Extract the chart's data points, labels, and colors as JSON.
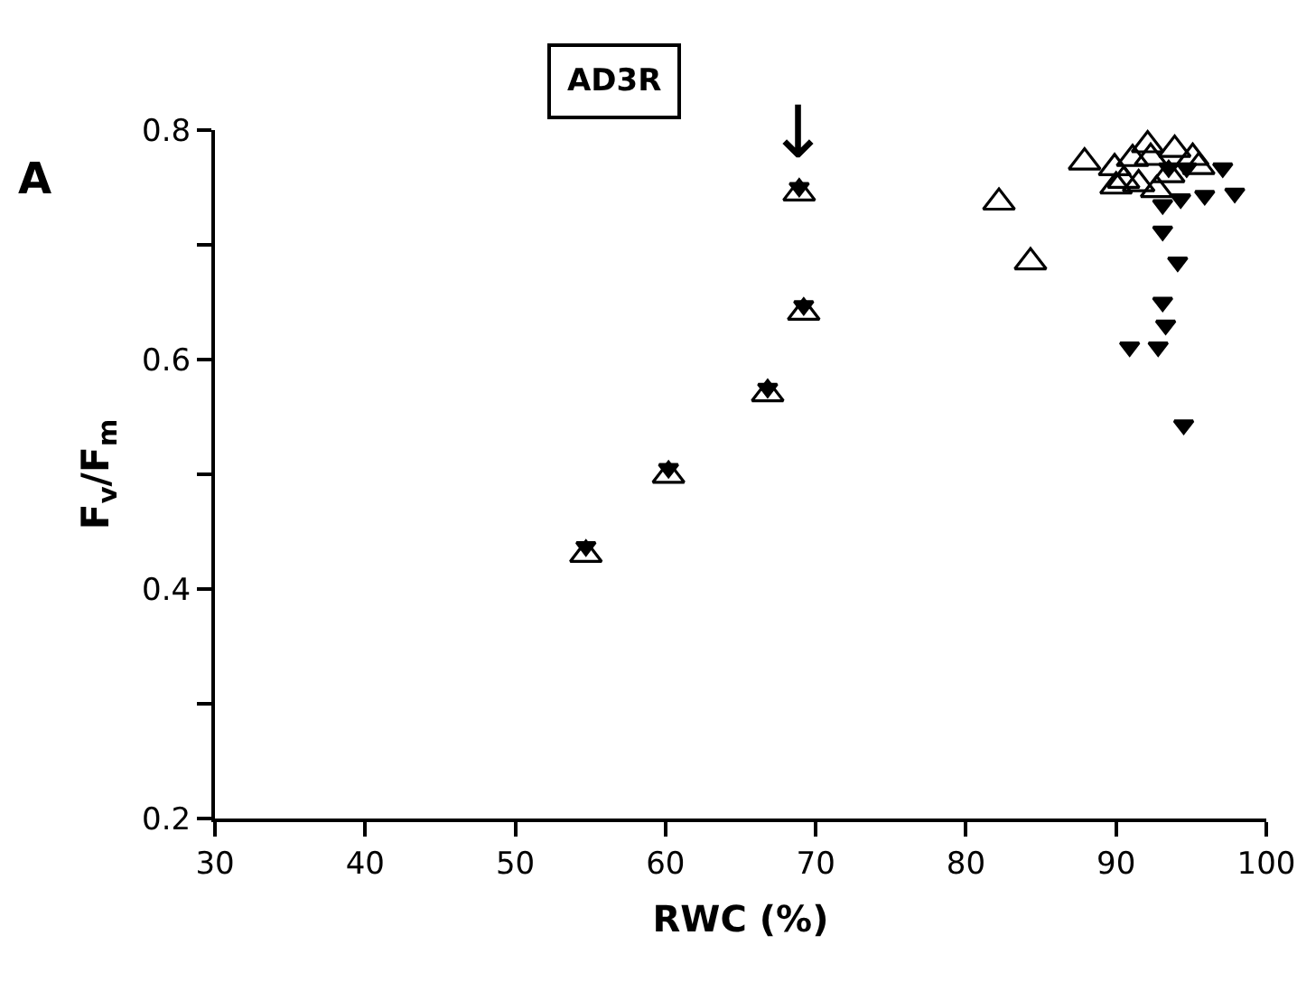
{
  "chart_data": {
    "type": "scatter",
    "title": "AD3R",
    "xlabel": "RWC (%)",
    "ylabel": "F$_{v}$/F$_{m}$",
    "xlim": [
      30,
      100
    ],
    "xticks": [
      30,
      40,
      50,
      60,
      70,
      80,
      90,
      100
    ],
    "ylim": [
      0.2,
      0.8
    ],
    "yticks": [
      0.2,
      {
        "value": 0.3,
        "label": null
      },
      0.4,
      {
        "value": 0.5,
        "label": null
      },
      0.6,
      {
        "value": 0.7,
        "label": null
      },
      0.8
    ],
    "annotations": [
      "A",
      {
        "text": "↓",
        "x": 68.9,
        "y": 0.745
      }
    ],
    "series": [
      {
        "color": "#000000",
        "marker": "triangle-open",
        "x": [
          54.7,
          60.2,
          66.8,
          69.2,
          68.9,
          82.2,
          84.3,
          87.9,
          89.9,
          90.5,
          91.1,
          92.1,
          92.3,
          90.0,
          91.5,
          93.9,
          93.5,
          95.1,
          95.5,
          92.7
        ],
        "values": [
          0.43,
          0.499,
          0.57,
          0.641,
          0.745,
          0.737,
          0.685,
          0.772,
          0.767,
          0.756,
          0.775,
          0.787,
          0.776,
          0.751,
          0.753,
          0.783,
          0.761,
          0.776,
          0.768,
          0.748
        ]
      },
      {
        "color": "#000000",
        "marker": "triangle-down",
        "x": [
          54.7,
          60.2,
          66.8,
          69.2,
          68.9,
          97.1,
          97.9,
          95.9,
          94.3,
          93.1,
          93.1,
          94.1,
          93.1,
          93.3,
          90.9,
          92.8,
          94.5,
          93.5,
          94.7
        ],
        "values": [
          0.437,
          0.505,
          0.575,
          0.647,
          0.75,
          0.767,
          0.745,
          0.743,
          0.74,
          0.735,
          0.712,
          0.685,
          0.65,
          0.63,
          0.611,
          0.611,
          0.543,
          0.767,
          0.767
        ]
      }
    ]
  }
}
